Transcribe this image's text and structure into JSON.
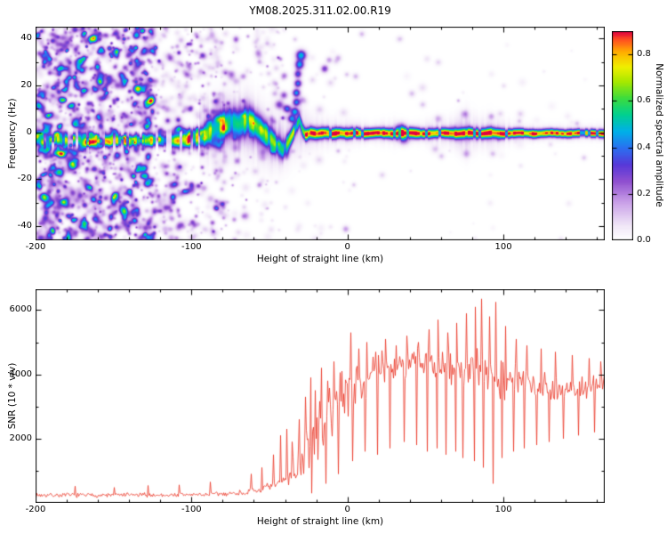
{
  "title": "YM08.2025.311.02.00.R19",
  "chart_data": [
    {
      "type": "heatmap",
      "title": "YM08.2025.311.02.00.R19",
      "xlabel": "Height of straight line (km)",
      "ylabel": "Frequency (Hz)",
      "colorbar_label": "Normalized spectral amplitude",
      "xlim": [
        -200,
        165
      ],
      "ylim": [
        -46,
        45
      ],
      "xticks": [
        -200,
        -100,
        0,
        100
      ],
      "yticks": [
        40,
        20,
        0,
        -20,
        -40
      ],
      "colorbar_ticks": [
        "0.0",
        "0.2",
        "0.4",
        "0.6",
        "0.8"
      ],
      "colorbar_range": [
        0,
        0.9
      ],
      "grid": false,
      "colormap_stops": [
        [
          0,
          "#ffffff"
        ],
        [
          0.07,
          "#f0e6f7"
        ],
        [
          0.18,
          "#c9a0e8"
        ],
        [
          0.28,
          "#9050d0"
        ],
        [
          0.36,
          "#5738d8"
        ],
        [
          0.44,
          "#2b6ff0"
        ],
        [
          0.52,
          "#00b0e8"
        ],
        [
          0.6,
          "#00d090"
        ],
        [
          0.68,
          "#3ddc3d"
        ],
        [
          0.76,
          "#a8e800"
        ],
        [
          0.83,
          "#f0f000"
        ],
        [
          0.9,
          "#ffb000"
        ],
        [
          0.96,
          "#ff5020"
        ],
        [
          1,
          "#e00040"
        ]
      ],
      "band_path": [
        [
          -200,
          -3,
          0.5,
          3
        ],
        [
          -193,
          -4,
          0.45,
          3
        ],
        [
          -186,
          -3,
          0.55,
          3
        ],
        [
          -180,
          -3.5,
          0.5,
          3
        ],
        [
          -173,
          -3,
          0.45,
          3
        ],
        [
          -166,
          -4,
          0.55,
          3
        ],
        [
          -160,
          -3,
          0.5,
          3
        ],
        [
          -153,
          -3.5,
          0.5,
          3
        ],
        [
          -146,
          -3,
          0.55,
          3
        ],
        [
          -140,
          -3.5,
          0.5,
          3
        ],
        [
          -133,
          -3,
          0.5,
          3
        ],
        [
          -126,
          -3.5,
          0.6,
          3
        ],
        [
          -120,
          -3,
          0.55,
          3
        ],
        [
          -113,
          -3.5,
          0.6,
          3.5
        ],
        [
          -106,
          -3,
          0.6,
          3.5
        ],
        [
          -100,
          -2.5,
          0.62,
          4
        ],
        [
          -94,
          -2,
          0.6,
          4.5
        ],
        [
          -88,
          0.5,
          0.58,
          5.5
        ],
        [
          -82,
          2.5,
          0.55,
          6.5
        ],
        [
          -76,
          4.5,
          0.52,
          7
        ],
        [
          -70,
          3.5,
          0.55,
          7
        ],
        [
          -64,
          5.5,
          0.52,
          6.5
        ],
        [
          -58,
          2.5,
          0.55,
          6
        ],
        [
          -52,
          -1,
          0.52,
          5.5
        ],
        [
          -46,
          -5,
          0.5,
          5
        ],
        [
          -42,
          -7.5,
          0.5,
          4.5
        ],
        [
          -38,
          -4,
          0.55,
          4
        ],
        [
          -34,
          1.5,
          0.6,
          3.5
        ],
        [
          -31,
          5.5,
          0.55,
          3
        ],
        [
          -29,
          1,
          0.65,
          3
        ],
        [
          -27,
          -1,
          0.8,
          2.6
        ],
        [
          -24,
          0,
          0.92,
          2.6
        ],
        [
          -20,
          -0.5,
          0.96,
          2.5
        ],
        [
          -15,
          0,
          0.9,
          2.4
        ],
        [
          -10,
          -0.5,
          0.95,
          2.4
        ],
        [
          -5,
          0,
          0.92,
          2.3
        ],
        [
          0,
          -0.5,
          0.96,
          2.3
        ],
        [
          5,
          0,
          0.9,
          2.2
        ],
        [
          10,
          -0.5,
          0.95,
          2.2
        ],
        [
          20,
          0,
          0.92,
          2.1
        ],
        [
          30,
          -0.5,
          0.96,
          2.3
        ],
        [
          40,
          0,
          0.93,
          2.3
        ],
        [
          50,
          -0.5,
          0.95,
          2.1
        ],
        [
          60,
          0,
          0.92,
          2.1
        ],
        [
          70,
          -0.5,
          0.95,
          2.2
        ],
        [
          78,
          0,
          0.9,
          2.4
        ],
        [
          85,
          -0.5,
          0.94,
          2.2
        ],
        [
          92,
          0,
          0.92,
          2.3
        ],
        [
          100,
          -0.5,
          0.95,
          2
        ],
        [
          110,
          0,
          0.94,
          1.9
        ],
        [
          120,
          -0.5,
          0.95,
          1.9
        ],
        [
          130,
          0,
          0.94,
          1.8
        ],
        [
          140,
          -0.5,
          0.95,
          1.8
        ],
        [
          150,
          0,
          0.95,
          1.8
        ],
        [
          165,
          -0.5,
          0.95,
          1.8
        ]
      ],
      "halo_path": [
        [
          -95,
          0,
          0.12,
          12
        ],
        [
          -80,
          3,
          0.14,
          14
        ],
        [
          -65,
          4,
          0.13,
          13
        ],
        [
          -50,
          -3,
          0.13,
          12
        ],
        [
          -40,
          -4,
          0.12,
          11
        ],
        [
          -30,
          2,
          0.12,
          10
        ],
        [
          -25,
          0,
          0.1,
          8
        ],
        [
          -15,
          0,
          0.09,
          6
        ],
        [
          0,
          0,
          0.09,
          5
        ],
        [
          15,
          0,
          0.08,
          4
        ],
        [
          30,
          0,
          0.1,
          5
        ],
        [
          40,
          0,
          0.08,
          4
        ],
        [
          55,
          0,
          0.09,
          5
        ],
        [
          68,
          0,
          0.1,
          6
        ],
        [
          76,
          0,
          0.13,
          9
        ],
        [
          84,
          0,
          0.1,
          6
        ],
        [
          92,
          0,
          0.12,
          7
        ],
        [
          100,
          0,
          0.09,
          5
        ],
        [
          115,
          0,
          0.07,
          4
        ],
        [
          130,
          0,
          0.06,
          3.5
        ],
        [
          150,
          0,
          0.06,
          3.5
        ],
        [
          165,
          0,
          0.06,
          3.5
        ]
      ],
      "blobs": [
        [
          -34,
          9,
          0.5,
          3
        ],
        [
          -33,
          13,
          0.45,
          3
        ],
        [
          -33,
          17,
          0.5,
          3
        ],
        [
          -32,
          21,
          0.45,
          3
        ],
        [
          -32,
          25,
          0.4,
          3
        ],
        [
          -31,
          29,
          0.5,
          3.5
        ],
        [
          -30,
          33,
          0.55,
          4
        ],
        [
          -36,
          6,
          0.45,
          3
        ],
        [
          -44,
          12,
          0.3,
          3.5
        ],
        [
          -41,
          16,
          0.28,
          3
        ],
        [
          -39,
          10,
          0.32,
          3
        ],
        [
          -15,
          27,
          0.2,
          3
        ],
        [
          -12,
          31,
          0.18,
          2.5
        ],
        [
          5,
          24,
          0.14,
          2.5
        ],
        [
          22,
          -18,
          0.1,
          2.5
        ],
        [
          34,
          2,
          0.3,
          4
        ],
        [
          36,
          -3,
          0.25,
          4
        ],
        [
          48,
          12,
          0.12,
          2.5
        ],
        [
          58,
          6,
          0.15,
          3
        ],
        [
          56,
          -7,
          0.12,
          3
        ],
        [
          60,
          -10,
          0.12,
          2.5
        ],
        [
          58,
          30,
          0.1,
          2.5
        ],
        [
          75,
          8,
          0.18,
          3
        ],
        [
          76,
          -9,
          0.15,
          3
        ],
        [
          92,
          7,
          0.15,
          2.5
        ],
        [
          93,
          -9,
          0.12,
          2.5
        ],
        [
          100,
          20,
          0.08,
          2
        ],
        [
          110,
          5,
          0.1,
          2
        ],
        [
          130,
          -5,
          0.08,
          2
        ]
      ],
      "noise_regions": [
        [
          -200,
          -125,
          1500,
          0.38
        ],
        [
          -125,
          -78,
          420,
          0.32
        ],
        [
          -78,
          -40,
          140,
          0.26
        ],
        [
          -40,
          5,
          50,
          0.2
        ],
        [
          5,
          165,
          45,
          0.16
        ]
      ],
      "seed": 19
    },
    {
      "type": "line",
      "xlabel": "Height of straight line (km)",
      "ylabel": "SNR (10 * v/v)",
      "xlim": [
        -200,
        165
      ],
      "ylim": [
        0,
        6650
      ],
      "xticks": [
        -200,
        -100,
        0,
        100
      ],
      "yticks": [
        2000,
        4000,
        6000
      ],
      "line_color": "#ea3423",
      "grid": false,
      "envelope": [
        [
          -200,
          240,
          80
        ],
        [
          -180,
          240,
          80
        ],
        [
          -160,
          235,
          80
        ],
        [
          -140,
          245,
          85
        ],
        [
          -120,
          240,
          85
        ],
        [
          -100,
          255,
          90
        ],
        [
          -90,
          260,
          90
        ],
        [
          -80,
          280,
          95
        ],
        [
          -72,
          300,
          100
        ],
        [
          -65,
          330,
          110
        ],
        [
          -58,
          380,
          140
        ],
        [
          -52,
          450,
          180
        ],
        [
          -47,
          520,
          220
        ],
        [
          -43,
          620,
          280
        ],
        [
          -40,
          750,
          380
        ],
        [
          -37,
          900,
          500
        ],
        [
          -34,
          1050,
          650
        ],
        [
          -31,
          1250,
          750
        ],
        [
          -28,
          1500,
          850
        ],
        [
          -25,
          1750,
          950
        ],
        [
          -22,
          2000,
          1000
        ],
        [
          -19,
          2250,
          1050
        ],
        [
          -16,
          2500,
          1050
        ],
        [
          -13,
          2750,
          1050
        ],
        [
          -10,
          3000,
          1000
        ],
        [
          -7,
          3200,
          950
        ],
        [
          -4,
          3350,
          900
        ],
        [
          0,
          3500,
          850
        ],
        [
          5,
          3700,
          800
        ],
        [
          10,
          3850,
          750
        ],
        [
          15,
          4000,
          700
        ],
        [
          20,
          4150,
          650
        ],
        [
          25,
          4250,
          620
        ],
        [
          30,
          4300,
          600
        ],
        [
          35,
          4350,
          600
        ],
        [
          40,
          4350,
          620
        ],
        [
          45,
          4300,
          650
        ],
        [
          50,
          4280,
          680
        ],
        [
          55,
          4300,
          700
        ],
        [
          60,
          4280,
          720
        ],
        [
          65,
          4250,
          750
        ],
        [
          70,
          4200,
          780
        ],
        [
          75,
          4150,
          800
        ],
        [
          80,
          4100,
          820
        ],
        [
          85,
          4050,
          850
        ],
        [
          90,
          4000,
          850
        ],
        [
          95,
          3950,
          820
        ],
        [
          100,
          3900,
          780
        ],
        [
          105,
          3850,
          720
        ],
        [
          110,
          3800,
          680
        ],
        [
          115,
          3750,
          620
        ],
        [
          120,
          3700,
          580
        ],
        [
          125,
          3650,
          540
        ],
        [
          130,
          3600,
          500
        ],
        [
          135,
          3570,
          470
        ],
        [
          140,
          3550,
          450
        ],
        [
          145,
          3550,
          430
        ],
        [
          150,
          3580,
          420
        ],
        [
          155,
          3620,
          400
        ],
        [
          160,
          3680,
          380
        ],
        [
          165,
          3700,
          360
        ]
      ],
      "spikes_up": [
        [
          -175,
          520
        ],
        [
          -150,
          480
        ],
        [
          -128,
          540
        ],
        [
          -108,
          560
        ],
        [
          -88,
          650
        ],
        [
          -62,
          900
        ],
        [
          -55,
          1100
        ],
        [
          -48,
          1500
        ],
        [
          -43,
          2100
        ],
        [
          -39,
          2300
        ],
        [
          -36,
          1900
        ],
        [
          -31,
          2600
        ],
        [
          -27,
          3300
        ],
        [
          -24,
          3900
        ],
        [
          -21,
          3500
        ],
        [
          -17,
          4200
        ],
        [
          -13,
          3800
        ],
        [
          -9,
          4400
        ],
        [
          -4,
          4100
        ],
        [
          2,
          5300
        ],
        [
          7,
          4800
        ],
        [
          12,
          5000
        ],
        [
          18,
          4700
        ],
        [
          24,
          5100
        ],
        [
          31,
          4900
        ],
        [
          38,
          5200
        ],
        [
          45,
          5000
        ],
        [
          52,
          5400
        ],
        [
          58,
          5700
        ],
        [
          64,
          5300
        ],
        [
          70,
          5600
        ],
        [
          76,
          5900
        ],
        [
          82,
          6100
        ],
        [
          86,
          6350
        ],
        [
          91,
          5800
        ],
        [
          95,
          6250
        ],
        [
          101,
          5500
        ],
        [
          108,
          5100
        ],
        [
          115,
          4900
        ],
        [
          124,
          4800
        ],
        [
          133,
          4700
        ],
        [
          144,
          4600
        ],
        [
          155,
          4500
        ],
        [
          162,
          4400
        ]
      ],
      "spikes_down": [
        [
          -23,
          300
        ],
        [
          -14,
          600
        ],
        [
          -6,
          900
        ],
        [
          3,
          1300
        ],
        [
          11,
          1600
        ],
        [
          19,
          1500
        ],
        [
          27,
          1700
        ],
        [
          36,
          1900
        ],
        [
          44,
          1800
        ],
        [
          51,
          1600
        ],
        [
          57,
          1700
        ],
        [
          63,
          1500
        ],
        [
          69,
          1600
        ],
        [
          74,
          1400
        ],
        [
          81,
          1300
        ],
        [
          87,
          1100
        ],
        [
          93,
          600
        ],
        [
          99,
          1400
        ],
        [
          106,
          1600
        ],
        [
          113,
          1700
        ],
        [
          121,
          1800
        ],
        [
          129,
          1900
        ],
        [
          138,
          2000
        ],
        [
          148,
          2100
        ],
        [
          158,
          2200
        ]
      ],
      "seed": 7
    }
  ]
}
